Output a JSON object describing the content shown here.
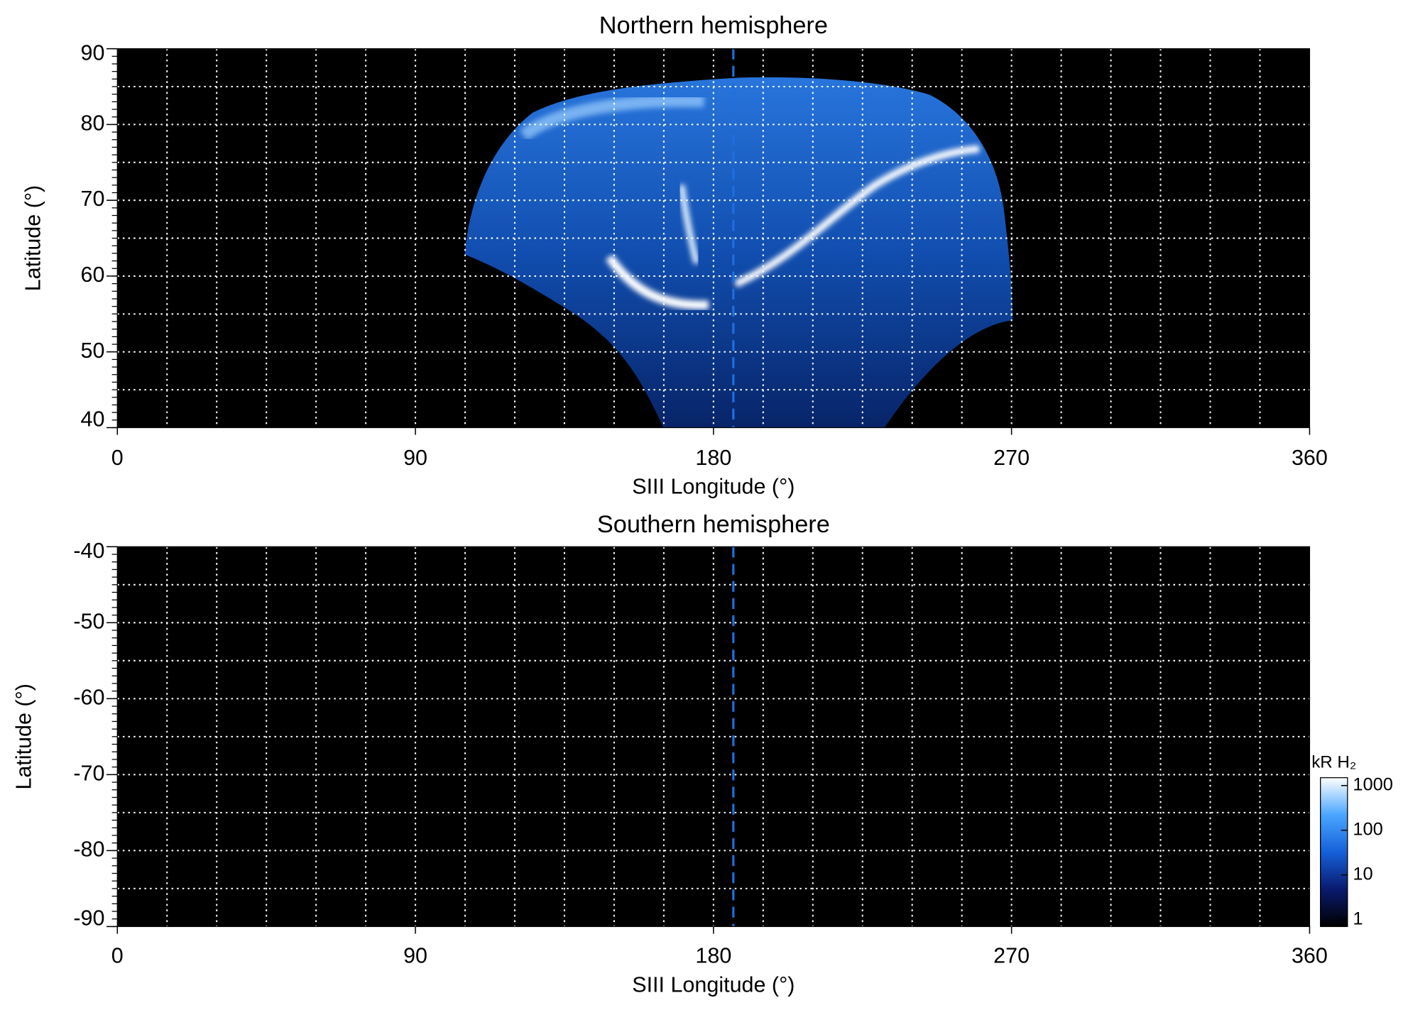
{
  "chart_data": [
    {
      "type": "map",
      "title": "Northern hemisphere",
      "xlabel": "SIII Longitude (°)",
      "ylabel": "Latitude (°)",
      "xlim": [
        0,
        360
      ],
      "xticks": [
        0,
        90,
        180,
        270,
        360
      ],
      "ylim": [
        40,
        90
      ],
      "yticks": [
        40,
        50,
        60,
        70,
        80,
        90
      ],
      "grid": true,
      "grid_x_step": 15,
      "grid_y_step": 5,
      "yminor_step": 1,
      "reference_line": {
        "x": 186,
        "color": "#1e6fe0"
      },
      "background": "#000000"
    },
    {
      "type": "map",
      "title": "Southern hemisphere",
      "xlabel": "SIII Longitude (°)",
      "ylabel": "Latitude (°)",
      "xlim": [
        0,
        360
      ],
      "xticks": [
        0,
        90,
        180,
        270,
        360
      ],
      "ylim": [
        -90,
        -40
      ],
      "yticks": [
        -90,
        -80,
        -70,
        -60,
        -50,
        -40
      ],
      "grid": true,
      "grid_x_step": 15,
      "grid_y_step": 5,
      "yminor_step": 1,
      "reference_line": {
        "x": 186,
        "color": "#1e6fe0"
      },
      "background": "#000000"
    }
  ],
  "colorbar": {
    "title": "kR H₂",
    "scale": "log",
    "lim": [
      0.7,
      1500
    ],
    "ticks": [
      1,
      10,
      100,
      1000
    ],
    "colors": [
      "#000000",
      "#0a1a6e",
      "#1560d8",
      "#4aa6ff",
      "#ffffff"
    ]
  }
}
